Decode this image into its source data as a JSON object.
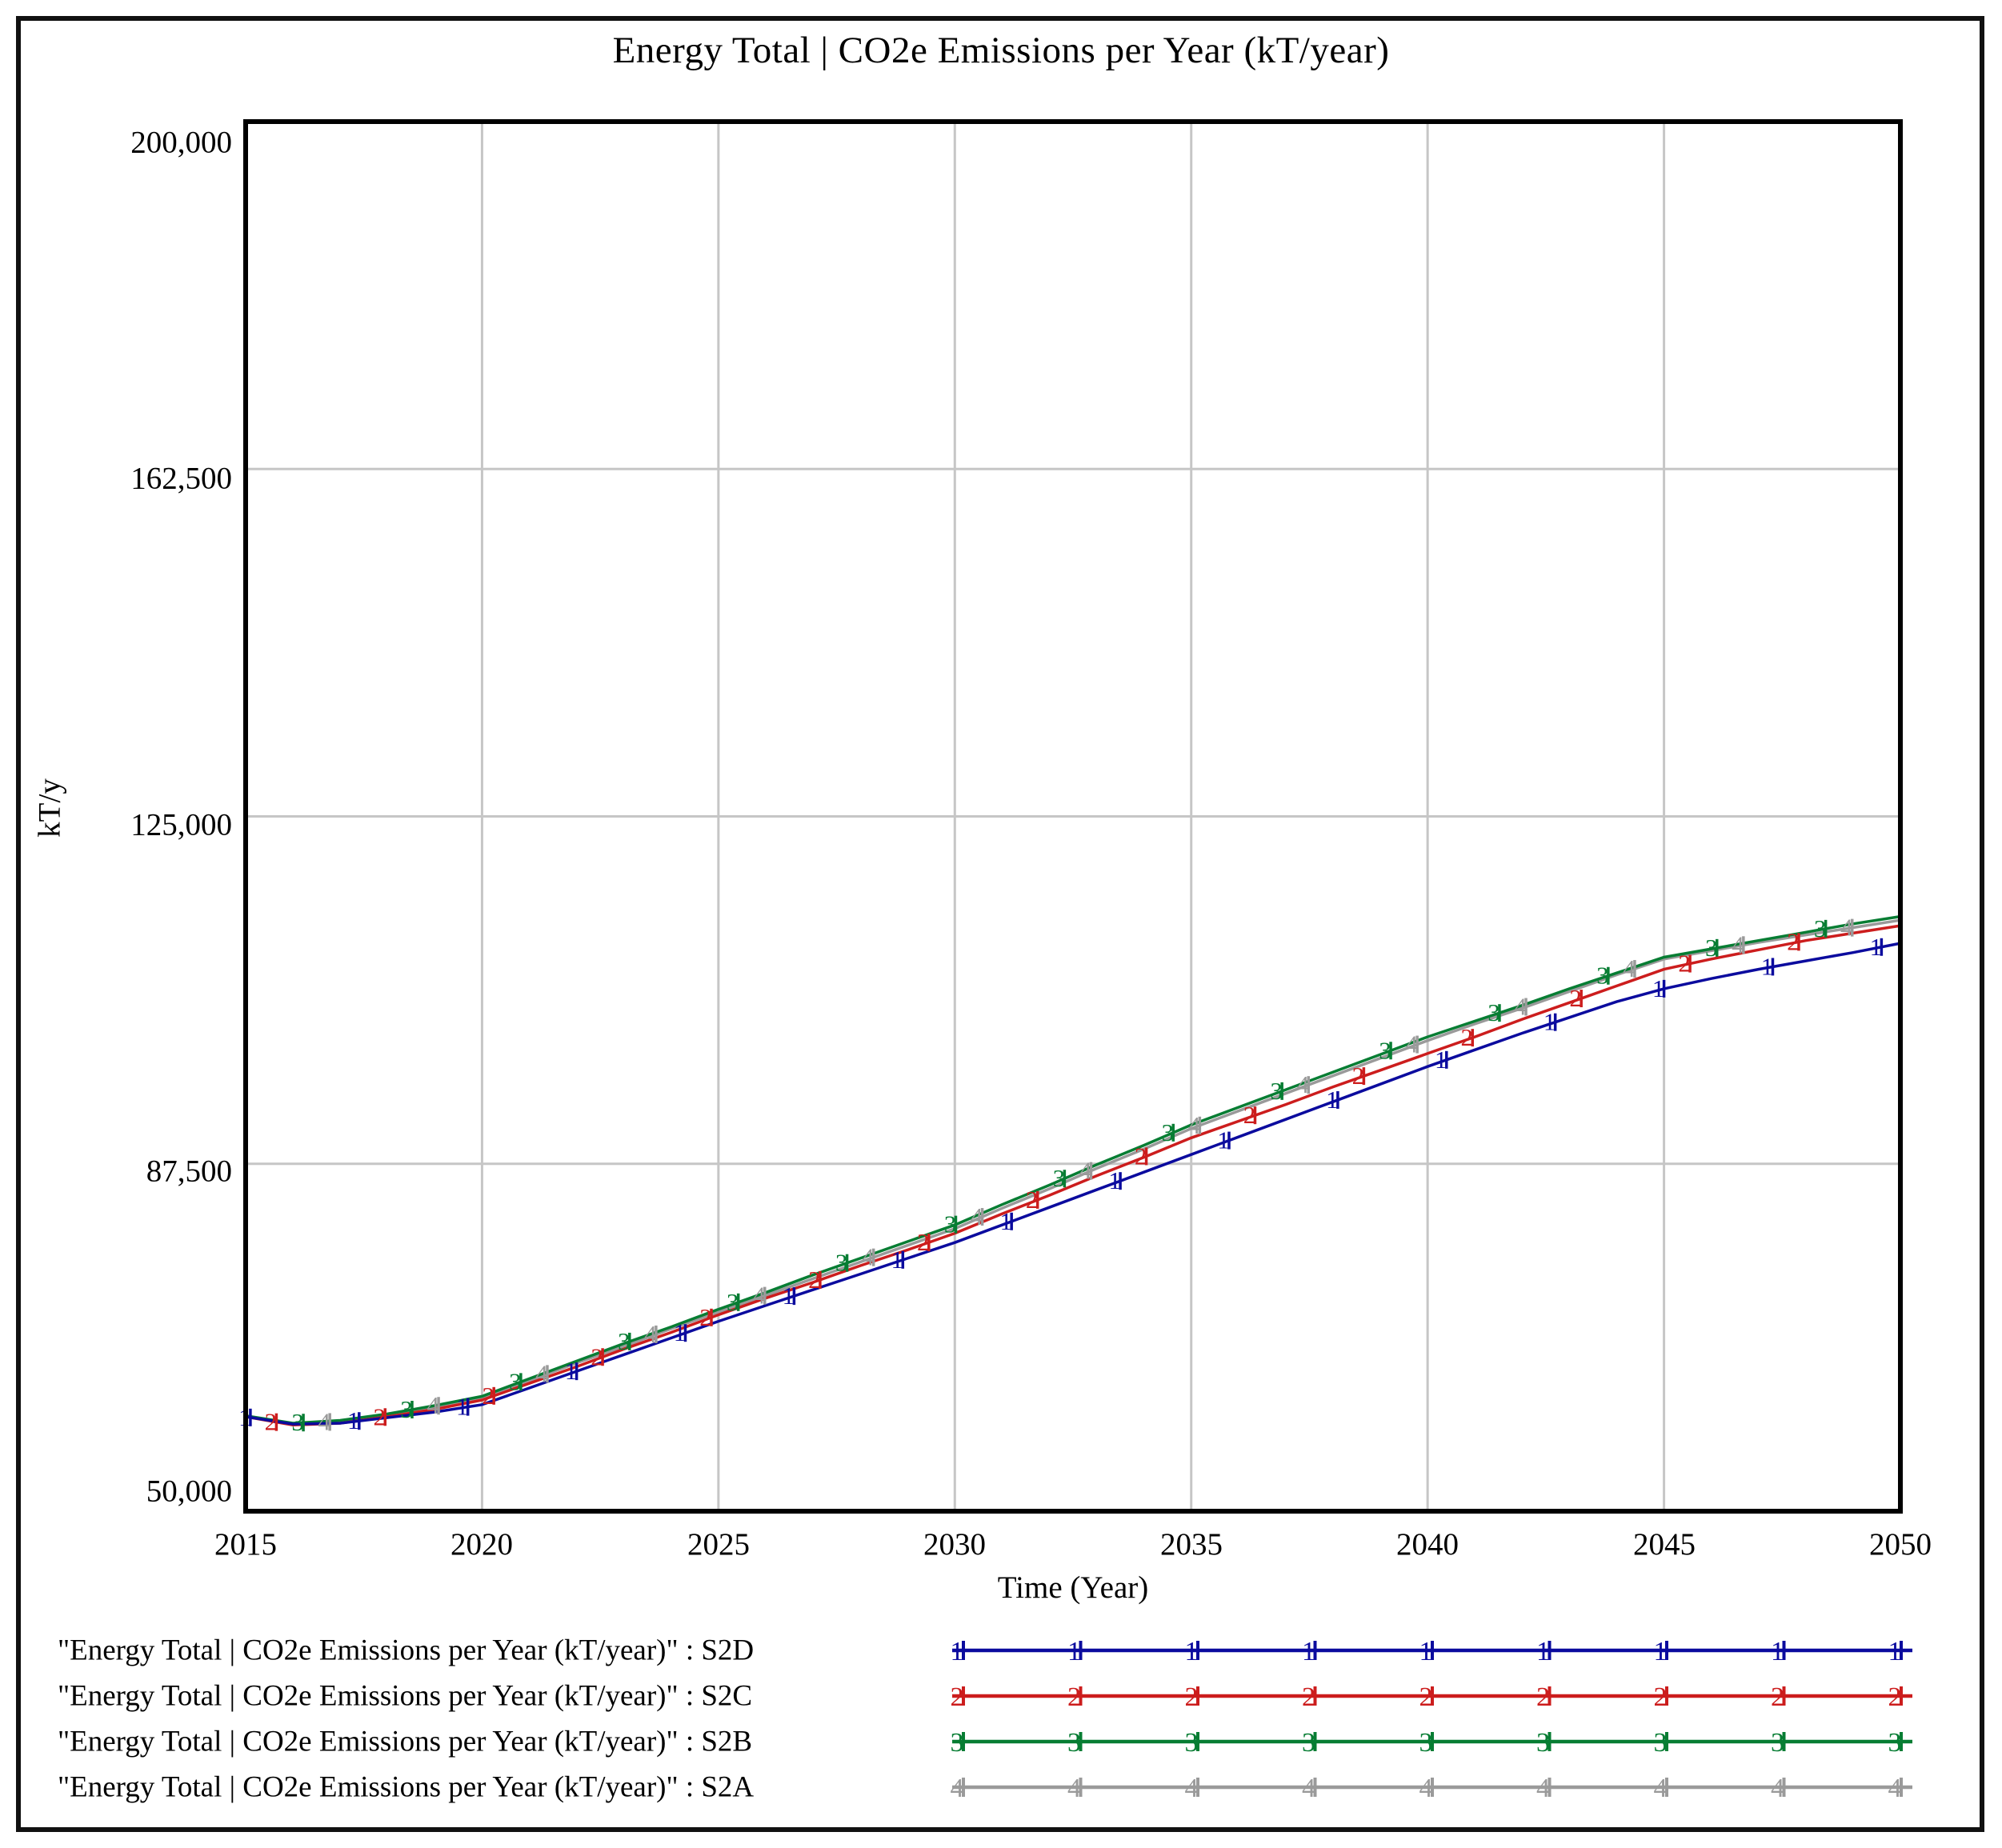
{
  "window": {
    "title": "Energy Total | CO2e Emissions per Year (kT/year)"
  },
  "chart_data": {
    "type": "line",
    "title": "Energy Total | CO2e Emissions per Year (kT/year)",
    "xlabel": "Time (Year)",
    "ylabel": "kT/y",
    "xlim": [
      2015,
      2050
    ],
    "ylim": [
      50000,
      200000
    ],
    "grid": true,
    "legend_position": "bottom",
    "x_tick_labels": [
      "2015",
      "2020",
      "2025",
      "2030",
      "2035",
      "2040",
      "2045",
      "2050"
    ],
    "y_tick_labels": [
      "200,000",
      "162,500",
      "125,000",
      "87,500",
      "50,000"
    ],
    "y_gridline_values": [
      162500,
      125000,
      87500
    ],
    "x_gridline_values": [
      2020,
      2025,
      2030,
      2035,
      2040,
      2045
    ],
    "x": [
      2015,
      2016,
      2017,
      2018,
      2019,
      2020,
      2021,
      2022,
      2023,
      2024,
      2025,
      2026,
      2027,
      2028,
      2029,
      2030,
      2031,
      2032,
      2033,
      2034,
      2035,
      2036,
      2037,
      2038,
      2039,
      2040,
      2041,
      2042,
      2043,
      2044,
      2045,
      2046,
      2047,
      2048,
      2049,
      2050
    ],
    "series": [
      {
        "name": "\"Energy Total | CO2e Emissions per Year (kT/year)\" : S2D",
        "scenario": "S2D",
        "marker": "1",
        "color": "#0b0b9e",
        "values": [
          60200,
          59400,
          59500,
          60100,
          60700,
          61500,
          63300,
          65100,
          66900,
          68700,
          70500,
          72200,
          73900,
          75600,
          77300,
          79000,
          80900,
          82800,
          84700,
          86600,
          88500,
          90400,
          92300,
          94200,
          96100,
          98000,
          99800,
          101600,
          103300,
          105000,
          106400,
          107500,
          108500,
          109400,
          110300,
          111300
        ]
      },
      {
        "name": "\"Energy Total | CO2e Emissions per Year (kT/year)\" : S2C",
        "scenario": "S2C",
        "marker": "2",
        "color": "#cc1d1d",
        "values": [
          60200,
          59300,
          59500,
          60200,
          61000,
          62000,
          63800,
          65600,
          67500,
          69300,
          71200,
          73000,
          74700,
          76500,
          78200,
          80000,
          82100,
          84100,
          86200,
          88200,
          90300,
          92100,
          93900,
          95800,
          97600,
          99400,
          101200,
          103100,
          104900,
          106700,
          108500,
          109600,
          110600,
          111600,
          112400,
          113200
        ]
      },
      {
        "name": "\"Energy Total | CO2e Emissions per Year (kT/year)\" : S2B",
        "scenario": "S2B",
        "marker": "3",
        "color": "#077d33",
        "values": [
          60300,
          59500,
          59800,
          60500,
          61400,
          62400,
          64300,
          66200,
          68100,
          69900,
          71800,
          73600,
          75500,
          77300,
          79100,
          80900,
          83100,
          85200,
          87400,
          89500,
          91700,
          93600,
          95500,
          97400,
          99300,
          101200,
          102900,
          104600,
          106400,
          108100,
          109800,
          110700,
          111600,
          112500,
          113400,
          114200
        ]
      },
      {
        "name": "\"Energy Total | CO2e Emissions per Year (kT/year)\" : S2A",
        "scenario": "S2A",
        "marker": "4",
        "color": "#9a9a9a",
        "values": [
          60300,
          59400,
          59700,
          60400,
          61300,
          62300,
          64100,
          66000,
          67800,
          69700,
          71500,
          73300,
          75100,
          76900,
          78700,
          80500,
          82700,
          84800,
          87000,
          89100,
          91300,
          93200,
          95100,
          97000,
          98900,
          100800,
          102600,
          104300,
          106100,
          107900,
          109600,
          110500,
          111400,
          112200,
          113000,
          113800
        ]
      }
    ]
  }
}
